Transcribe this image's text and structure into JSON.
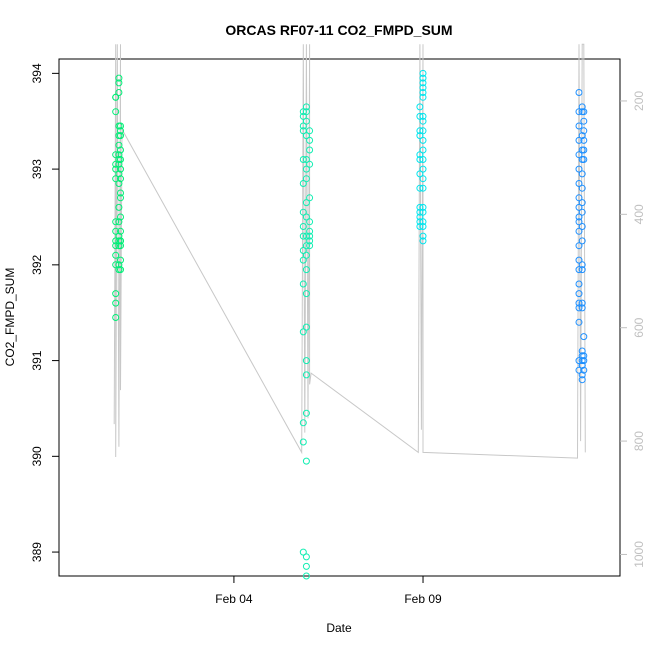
{
  "chart_data": {
    "type": "scatter",
    "title": "ORCAS RF07-11 CO2_FMPD_SUM",
    "xlabel": "Date",
    "ylabel": "CO2_FMPD_SUM",
    "x_ticks": [
      {
        "date": "2016-02-04",
        "label": "Feb 04"
      },
      {
        "date": "2016-02-09",
        "label": "Feb 09"
      }
    ],
    "xlim": [
      "2016-01-30T09:00",
      "2016-02-14T05:00"
    ],
    "ylim": [
      388.75,
      394.15
    ],
    "y_ticks": [
      389,
      390,
      391,
      392,
      393,
      394
    ],
    "right_axis": {
      "ticks": [
        200,
        400,
        600,
        800,
        1000
      ],
      "lim": [
        126,
        1038
      ],
      "reversed": true,
      "color": "#c0c0c0"
    },
    "grid": false,
    "legend": "none",
    "colors": {
      "altitude_line": "#c8c8c8",
      "rf07": "#00ee76",
      "rf08": "#11eeb2",
      "rf09": "#00e5ee",
      "rf10": "#1e90ff"
    },
    "series": [
      {
        "color": "#00ee76",
        "x": [
          "2016-01-31T21:00",
          "2016-01-31T21:00",
          "2016-01-31T21:00",
          "2016-01-31T21:00",
          "2016-01-31T21:00",
          "2016-01-31T21:00",
          "2016-01-31T21:00",
          "2016-01-31T21:00",
          "2016-01-31T21:00",
          "2016-01-31T21:00",
          "2016-01-31T21:00",
          "2016-01-31T21:00",
          "2016-01-31T21:00",
          "2016-01-31T21:00",
          "2016-01-31T21:00",
          "2016-01-31T21:00",
          "2016-01-31T23:00",
          "2016-01-31T23:00",
          "2016-01-31T23:00",
          "2016-01-31T23:00",
          "2016-01-31T23:00",
          "2016-01-31T23:00",
          "2016-01-31T23:00",
          "2016-01-31T23:00",
          "2016-01-31T23:00",
          "2016-01-31T23:00",
          "2016-01-31T23:00",
          "2016-01-31T23:00",
          "2016-01-31T23:00",
          "2016-01-31T23:00",
          "2016-01-31T23:00",
          "2016-01-31T23:00",
          "2016-01-31T23:00",
          "2016-01-31T23:00",
          "2016-02-01T00:00",
          "2016-02-01T00:00",
          "2016-02-01T00:00",
          "2016-02-01T00:00",
          "2016-02-01T00:00",
          "2016-02-01T00:00",
          "2016-02-01T00:00",
          "2016-02-01T00:00",
          "2016-02-01T00:00",
          "2016-02-01T00:00",
          "2016-02-01T00:00",
          "2016-02-01T00:00",
          "2016-02-01T00:00",
          "2016-02-01T00:00",
          "2016-02-01T00:00",
          "2016-02-01T00:00"
        ],
        "y": [
          393.75,
          393.6,
          393.15,
          393.0,
          392.9,
          392.45,
          392.35,
          392.25,
          392.2,
          392.1,
          392.0,
          391.7,
          391.6,
          391.45,
          393.05,
          393.75,
          393.9,
          393.8,
          393.45,
          393.35,
          393.25,
          393.05,
          392.85,
          392.6,
          392.45,
          392.3,
          392.25,
          392.2,
          392.0,
          391.95,
          393.15,
          393.1,
          392.95,
          393.95,
          393.4,
          393.35,
          393.1,
          392.9,
          392.75,
          392.5,
          392.35,
          392.25,
          392.2,
          391.95,
          392.05,
          393.45,
          393.2,
          393.0,
          392.7,
          392.25
        ]
      },
      {
        "color": "#11eeb2",
        "x": [
          "2016-02-05T20:00",
          "2016-02-05T20:00",
          "2016-02-05T20:00",
          "2016-02-05T20:00",
          "2016-02-05T20:00",
          "2016-02-05T20:00",
          "2016-02-05T20:00",
          "2016-02-05T20:00",
          "2016-02-05T20:00",
          "2016-02-05T20:00",
          "2016-02-05T20:00",
          "2016-02-05T20:00",
          "2016-02-05T20:00",
          "2016-02-05T20:00",
          "2016-02-05T20:00",
          "2016-02-05T20:00",
          "2016-02-05T22:00",
          "2016-02-05T22:00",
          "2016-02-05T22:00",
          "2016-02-05T22:00",
          "2016-02-05T22:00",
          "2016-02-05T22:00",
          "2016-02-05T22:00",
          "2016-02-05T22:00",
          "2016-02-05T22:00",
          "2016-02-05T22:00",
          "2016-02-05T22:00",
          "2016-02-05T22:00",
          "2016-02-05T22:00",
          "2016-02-05T22:00",
          "2016-02-05T22:00",
          "2016-02-05T22:00",
          "2016-02-05T22:00",
          "2016-02-05T22:00",
          "2016-02-05T22:00",
          "2016-02-05T22:00",
          "2016-02-05T22:00",
          "2016-02-05T22:00",
          "2016-02-06T00:00",
          "2016-02-06T00:00",
          "2016-02-06T00:00",
          "2016-02-06T00:00",
          "2016-02-06T00:00",
          "2016-02-06T00:00",
          "2016-02-06T00:00",
          "2016-02-06T00:00",
          "2016-02-06T00:00",
          "2016-02-06T00:00"
        ],
        "y": [
          393.6,
          393.55,
          393.45,
          393.4,
          393.1,
          392.85,
          392.55,
          392.4,
          392.3,
          392.15,
          392.05,
          391.8,
          391.3,
          390.35,
          390.15,
          389.0,
          393.65,
          393.6,
          393.5,
          393.35,
          393.1,
          393.0,
          392.9,
          392.65,
          392.5,
          392.3,
          392.2,
          392.1,
          391.95,
          391.7,
          391.35,
          391.0,
          390.85,
          390.45,
          389.95,
          388.95,
          388.85,
          388.75,
          393.4,
          393.3,
          393.2,
          393.05,
          392.7,
          392.45,
          392.35,
          392.3,
          392.25,
          392.2
        ]
      },
      {
        "color": "#00e5ee",
        "x": [
          "2016-02-08T22:00",
          "2016-02-08T22:00",
          "2016-02-08T22:00",
          "2016-02-08T22:00",
          "2016-02-08T22:00",
          "2016-02-08T22:00",
          "2016-02-08T22:00",
          "2016-02-08T22:00",
          "2016-02-08T22:00",
          "2016-02-08T22:00",
          "2016-02-08T22:00",
          "2016-02-08T22:00",
          "2016-02-08T22:00",
          "2016-02-09T00:00",
          "2016-02-09T00:00",
          "2016-02-09T00:00",
          "2016-02-09T00:00",
          "2016-02-09T00:00",
          "2016-02-09T00:00",
          "2016-02-09T00:00",
          "2016-02-09T00:00",
          "2016-02-09T00:00",
          "2016-02-09T00:00",
          "2016-02-09T00:00",
          "2016-02-09T00:00",
          "2016-02-09T00:00",
          "2016-02-09T00:00",
          "2016-02-09T00:00",
          "2016-02-09T00:00",
          "2016-02-09T00:00",
          "2016-02-09T00:00",
          "2016-02-09T00:00",
          "2016-02-09T00:00",
          "2016-02-09T00:00"
        ],
        "y": [
          393.65,
          393.55,
          393.4,
          393.35,
          393.15,
          393.1,
          392.95,
          392.8,
          392.6,
          392.55,
          392.5,
          392.45,
          392.4,
          394.0,
          393.95,
          393.9,
          393.85,
          393.8,
          393.55,
          393.4,
          393.2,
          393.1,
          393.0,
          392.9,
          392.8,
          392.6,
          392.55,
          392.45,
          392.4,
          392.3,
          392.25,
          393.75,
          393.5,
          393.3
        ]
      },
      {
        "color": "#1e90ff",
        "x": [
          "2016-02-13T03:00",
          "2016-02-13T03:00",
          "2016-02-13T03:00",
          "2016-02-13T03:00",
          "2016-02-13T03:00",
          "2016-02-13T03:00",
          "2016-02-13T03:00",
          "2016-02-13T03:00",
          "2016-02-13T03:00",
          "2016-02-13T03:00",
          "2016-02-13T03:00",
          "2016-02-13T03:00",
          "2016-02-13T03:00",
          "2016-02-13T03:00",
          "2016-02-13T03:00",
          "2016-02-13T03:00",
          "2016-02-13T03:00",
          "2016-02-13T03:00",
          "2016-02-13T03:00",
          "2016-02-13T03:00",
          "2016-02-13T03:00",
          "2016-02-13T03:00",
          "2016-02-13T05:00",
          "2016-02-13T05:00",
          "2016-02-13T05:00",
          "2016-02-13T05:00",
          "2016-02-13T05:00",
          "2016-02-13T05:00",
          "2016-02-13T05:00",
          "2016-02-13T05:00",
          "2016-02-13T05:00",
          "2016-02-13T05:00",
          "2016-02-13T05:00",
          "2016-02-13T05:00",
          "2016-02-13T05:00",
          "2016-02-13T05:00",
          "2016-02-13T05:00",
          "2016-02-13T05:00",
          "2016-02-13T05:00",
          "2016-02-13T05:00",
          "2016-02-13T05:00",
          "2016-02-13T05:00",
          "2016-02-13T05:00",
          "2016-02-13T05:00",
          "2016-02-13T06:00",
          "2016-02-13T06:00",
          "2016-02-13T06:00",
          "2016-02-13T06:00",
          "2016-02-13T06:00",
          "2016-02-13T06:00",
          "2016-02-13T06:00",
          "2016-02-13T06:00",
          "2016-02-13T06:00",
          "2016-02-13T06:00"
        ],
        "y": [
          393.8,
          393.6,
          393.45,
          393.3,
          393.15,
          393.0,
          392.85,
          392.7,
          392.6,
          392.5,
          392.45,
          392.35,
          392.2,
          392.05,
          391.95,
          391.8,
          391.7,
          391.6,
          391.55,
          391.4,
          391.0,
          390.9,
          393.65,
          393.6,
          393.35,
          393.2,
          393.1,
          392.95,
          392.8,
          392.65,
          392.55,
          392.4,
          392.25,
          392.0,
          391.95,
          391.6,
          391.55,
          391.05,
          390.95,
          390.85,
          390.8,
          390.95,
          391.0,
          391.1,
          393.6,
          393.5,
          393.4,
          393.3,
          393.2,
          393.1,
          391.25,
          391.05,
          391.0,
          390.9
        ]
      }
    ],
    "altitude_line": {
      "x": [
        "2016-01-31T20:00",
        "2016-01-31T21:00",
        "2016-01-31T21:00",
        "2016-01-31T22:00",
        "2016-01-31T23:00",
        "2016-02-01T00:00",
        "2016-02-01T00:00",
        "2016-02-01T01:00",
        "2016-02-05T19:00",
        "2016-02-05T20:00",
        "2016-02-05T21:00",
        "2016-02-05T22:00",
        "2016-02-05T23:00",
        "2016-02-06T00:00",
        "2016-02-06T00:00",
        "2016-02-06T01:00",
        "2016-02-08T21:00",
        "2016-02-08T22:00",
        "2016-02-08T23:00",
        "2016-02-09T00:00",
        "2016-02-09T00:00",
        "2016-02-13T02:00",
        "2016-02-13T03:00",
        "2016-02-13T04:00",
        "2016-02-13T05:00",
        "2016-02-13T06:00",
        "2016-02-13T07:00"
      ],
      "y": [
        770,
        100,
        828,
        100,
        810,
        100,
        710,
        250,
        820,
        100,
        785,
        100,
        760,
        100,
        700,
        680,
        820,
        100,
        780,
        100,
        820,
        830,
        100,
        800,
        100,
        100,
        820
      ]
    }
  }
}
